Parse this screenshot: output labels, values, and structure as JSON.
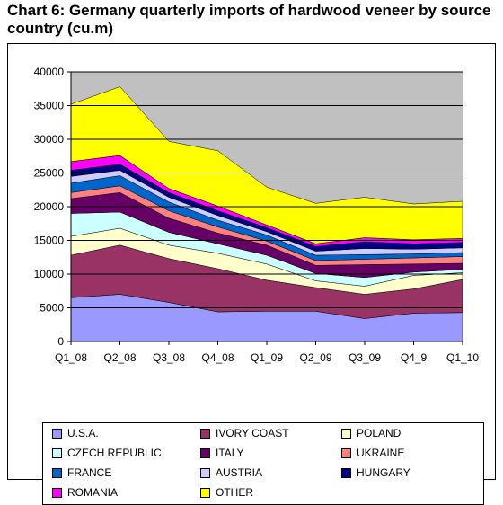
{
  "title": "Chart 6: Germany quarterly imports of hardwood veneer by source country (cu.m)",
  "chart_data": {
    "type": "area",
    "stacked": true,
    "categories": [
      "Q1_08",
      "Q2_08",
      "Q3_08",
      "Q4_08",
      "Q1_09",
      "Q2_09",
      "Q3_09",
      "Q4_9",
      "Q1_10"
    ],
    "ylim": [
      0,
      40000
    ],
    "yticks": [
      0,
      5000,
      10000,
      15000,
      20000,
      25000,
      30000,
      35000,
      40000
    ],
    "grid": true,
    "plot_background": "#c0c0c0",
    "legend_position": "bottom",
    "series": [
      {
        "name": "U.S.A.",
        "color": "#9999ff",
        "values": [
          6500,
          7000,
          5800,
          4400,
          4500,
          4500,
          3400,
          4200,
          4300
        ]
      },
      {
        "name": "IVORY COAST",
        "color": "#993366",
        "values": [
          6300,
          7300,
          6500,
          6400,
          4600,
          3500,
          3600,
          3600,
          4900
        ]
      },
      {
        "name": "POLAND",
        "color": "#ffffcc",
        "values": [
          2800,
          2500,
          2000,
          2300,
          2400,
          1000,
          1200,
          2000,
          1000
        ]
      },
      {
        "name": "CZECH REPUBLIC",
        "color": "#ccffff",
        "values": [
          3400,
          2400,
          1900,
          1400,
          1300,
          1100,
          1300,
          500,
          500
        ]
      },
      {
        "name": "ITALY",
        "color": "#660066",
        "values": [
          2200,
          2900,
          2100,
          1600,
          1500,
          1200,
          1900,
          1200,
          900
        ]
      },
      {
        "name": "UKRAINE",
        "color": "#ff8080",
        "values": [
          900,
          1000,
          1100,
          900,
          600,
          700,
          800,
          900,
          1000
        ]
      },
      {
        "name": "FRANCE",
        "color": "#0066cc",
        "values": [
          1400,
          1500,
          1300,
          1000,
          900,
          800,
          700,
          600,
          600
        ]
      },
      {
        "name": "AUSTRIA",
        "color": "#ccccff",
        "values": [
          1000,
          800,
          700,
          700,
          500,
          600,
          900,
          700,
          700
        ]
      },
      {
        "name": "HUNGARY",
        "color": "#000080",
        "values": [
          900,
          900,
          700,
          700,
          600,
          700,
          1000,
          800,
          800
        ]
      },
      {
        "name": "ROMANIA",
        "color": "#ff00ff",
        "values": [
          1300,
          1300,
          600,
          700,
          400,
          400,
          600,
          600,
          600
        ]
      },
      {
        "name": "OTHER",
        "color": "#ffff00",
        "values": [
          8500,
          10200,
          7000,
          8200,
          5600,
          6000,
          6000,
          5300,
          5500
        ]
      }
    ]
  }
}
